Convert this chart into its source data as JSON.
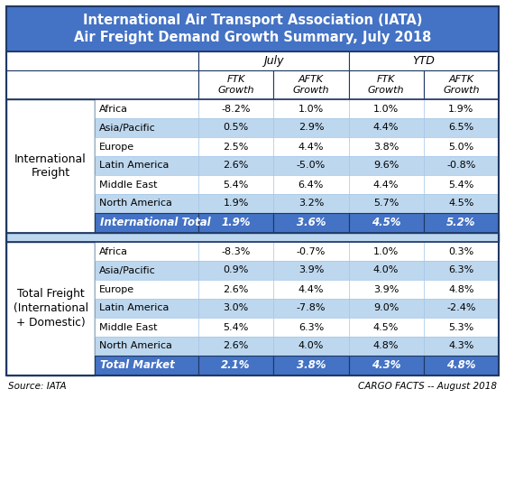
{
  "title_line1": "International Air Transport Association (IATA)",
  "title_line2": "Air Freight Demand Growth Summary, July 2018",
  "title_bg": "#4472C4",
  "title_color": "#FFFFFF",
  "col_header_july": "July",
  "col_header_ytd": "YTD",
  "sub_headers": [
    "FTK\nGrowth",
    "AFTK\nGrowth",
    "FTK\nGrowth",
    "AFTK\nGrowth"
  ],
  "section1_label": "International\nFreight",
  "section1_rows": [
    [
      "Africa",
      "-8.2%",
      "1.0%",
      "1.0%",
      "1.9%"
    ],
    [
      "Asia/Pacific",
      "0.5%",
      "2.9%",
      "4.4%",
      "6.5%"
    ],
    [
      "Europe",
      "2.5%",
      "4.4%",
      "3.8%",
      "5.0%"
    ],
    [
      "Latin America",
      "2.6%",
      "-5.0%",
      "9.6%",
      "-0.8%"
    ],
    [
      "Middle East",
      "5.4%",
      "6.4%",
      "4.4%",
      "5.4%"
    ],
    [
      "North America",
      "1.9%",
      "3.2%",
      "5.7%",
      "4.5%"
    ]
  ],
  "section1_total": [
    "International Total",
    "1.9%",
    "3.6%",
    "4.5%",
    "5.2%"
  ],
  "section2_label": "Total Freight\n(International\n+ Domestic)",
  "section2_rows": [
    [
      "Africa",
      "-8.3%",
      "-0.7%",
      "1.0%",
      "0.3%"
    ],
    [
      "Asia/Pacific",
      "0.9%",
      "3.9%",
      "4.0%",
      "6.3%"
    ],
    [
      "Europe",
      "2.6%",
      "4.4%",
      "3.9%",
      "4.8%"
    ],
    [
      "Latin America",
      "3.0%",
      "-7.8%",
      "9.0%",
      "-2.4%"
    ],
    [
      "Middle East",
      "5.4%",
      "6.3%",
      "4.5%",
      "5.3%"
    ],
    [
      "North America",
      "2.6%",
      "4.0%",
      "4.8%",
      "4.3%"
    ]
  ],
  "section2_total": [
    "Total Market",
    "2.1%",
    "3.8%",
    "4.3%",
    "4.8%"
  ],
  "footer_left": "Source: IATA",
  "footer_right": "CARGO FACTS -- August 2018",
  "color_light_blue": "#BDD7EE",
  "color_medium_blue": "#4472C4",
  "color_white": "#FFFFFF",
  "color_border_dark": "#1F3864",
  "color_border_light": "#9DC3E6",
  "color_spacer": "#9DC3E6"
}
